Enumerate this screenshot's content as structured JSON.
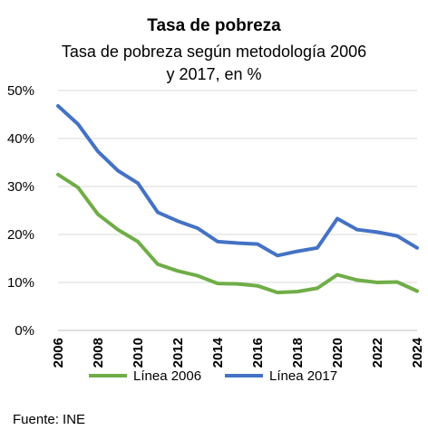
{
  "chart_data": {
    "type": "line",
    "title": "Tasa de pobreza",
    "subtitle_lines": [
      "Tasa de pobreza según metodología 2006",
      "y 2017, en %"
    ],
    "x": [
      2006,
      2007,
      2008,
      2009,
      2010,
      2011,
      2012,
      2013,
      2014,
      2015,
      2016,
      2017,
      2018,
      2019,
      2020,
      2021,
      2022,
      2023,
      2024
    ],
    "x_tick_labels": [
      "2006",
      "2008",
      "2010",
      "2012",
      "2014",
      "2016",
      "2018",
      "2020",
      "2022",
      "2024"
    ],
    "ylim": [
      0,
      50
    ],
    "y_tick_labels": [
      "0%",
      "10%",
      "20%",
      "30%",
      "40%",
      "50%"
    ],
    "y_ticks": [
      0,
      10,
      20,
      30,
      40,
      50
    ],
    "grid": true,
    "legend_position": "bottom",
    "series": [
      {
        "name": "Línea 2006",
        "color": "#70ad47",
        "values": [
          32.5,
          29.8,
          24.2,
          21.0,
          18.5,
          13.8,
          12.4,
          11.4,
          9.8,
          9.7,
          9.3,
          7.9,
          8.1,
          8.8,
          11.6,
          10.5,
          10.0,
          10.1,
          8.2
        ]
      },
      {
        "name": "Línea 2017",
        "color": "#4472c4",
        "values": [
          46.8,
          43.0,
          37.3,
          33.3,
          30.7,
          24.6,
          22.8,
          21.3,
          18.5,
          18.2,
          18.0,
          15.6,
          16.5,
          17.2,
          23.3,
          21.0,
          20.5,
          19.7,
          17.2
        ]
      }
    ],
    "source": "Fuente: INE"
  }
}
